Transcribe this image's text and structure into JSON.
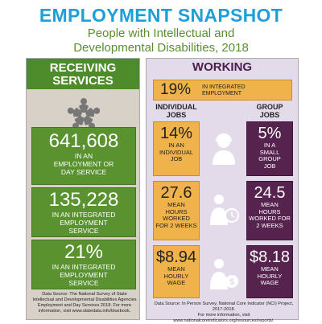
{
  "header": {
    "title": "EMPLOYMENT SNAPSHOT",
    "subtitle_line1": "People with Intellectual and",
    "subtitle_line2": "Developmental Disabilities, 2018"
  },
  "receiving_services": {
    "heading_line1": "RECEIVING",
    "heading_line2": "SERVICES",
    "logo_icon": "people-circle-logo-icon",
    "stats": [
      {
        "value": "641,608",
        "label_lines": [
          "IN AN",
          "EMPLOYMENT OR",
          "DAY SERVICE"
        ]
      },
      {
        "value": "135,228",
        "label_lines": [
          "IN AN INTEGRATED",
          "EMPLOYMENT",
          "SERVICE"
        ]
      },
      {
        "value": "21%",
        "label_lines": [
          "IN AN INTEGRATED",
          "EMPLOYMENT",
          "SERVICE"
        ]
      }
    ],
    "source_lines": [
      "Data Source: The National Survey of State",
      "Intellectual and Developmental Disabilities Agencies",
      "Employment and Day Services 2018. For more",
      "information, visit www.statedata.info/bluebook."
    ]
  },
  "working": {
    "heading": "WORKING",
    "integrated": {
      "value": "19%",
      "label_lines": [
        "IN INTEGRATED",
        "EMPLOYMENT"
      ]
    },
    "individual_heading_lines": [
      "INDIVIDUAL",
      "JOBS"
    ],
    "group_heading_lines": [
      "GROUP",
      "JOBS"
    ],
    "rows": [
      {
        "individual": {
          "value": "14%",
          "label_lines": [
            "IN AN",
            "INDIVIDUAL",
            "JOB"
          ]
        },
        "group": {
          "value": "5%",
          "label_lines": [
            "IN A",
            "SMALL",
            "GROUP",
            "JOB"
          ]
        },
        "icon": "worker-headset-icon"
      },
      {
        "individual": {
          "value": "27.6",
          "label_lines": [
            "MEAN",
            "HOURS",
            "WORKED",
            "FOR 2 WEEKS"
          ]
        },
        "group": {
          "value": "24.5",
          "label_lines": [
            "MEAN",
            "HOURS",
            "WORKED FOR 2 WEEKS"
          ]
        },
        "icon": "worker-clock-icon"
      },
      {
        "individual": {
          "value": "$8.94",
          "label_lines": [
            "MEAN",
            "HOURLY",
            "WAGE"
          ]
        },
        "group": {
          "value": "$8.18",
          "label_lines": [
            "MEAN",
            "HOURLY",
            "WAGE"
          ]
        },
        "icon": "worker-dollar-icon"
      }
    ],
    "source_lines": [
      "Data Source: In Person Survey, National Core Indicator (NCI) Project, 2017-2018.",
      "For more information, visit www.nationalcoreindicators.org/resources/reports/."
    ]
  },
  "colors": {
    "title_blue": "#1f9fd6",
    "green": "#5a9230",
    "orange": "#f0b24a",
    "purple": "#56234f",
    "left_panel_bg": "#d7d1c8",
    "right_panel_bg": "#e3dbe9"
  }
}
